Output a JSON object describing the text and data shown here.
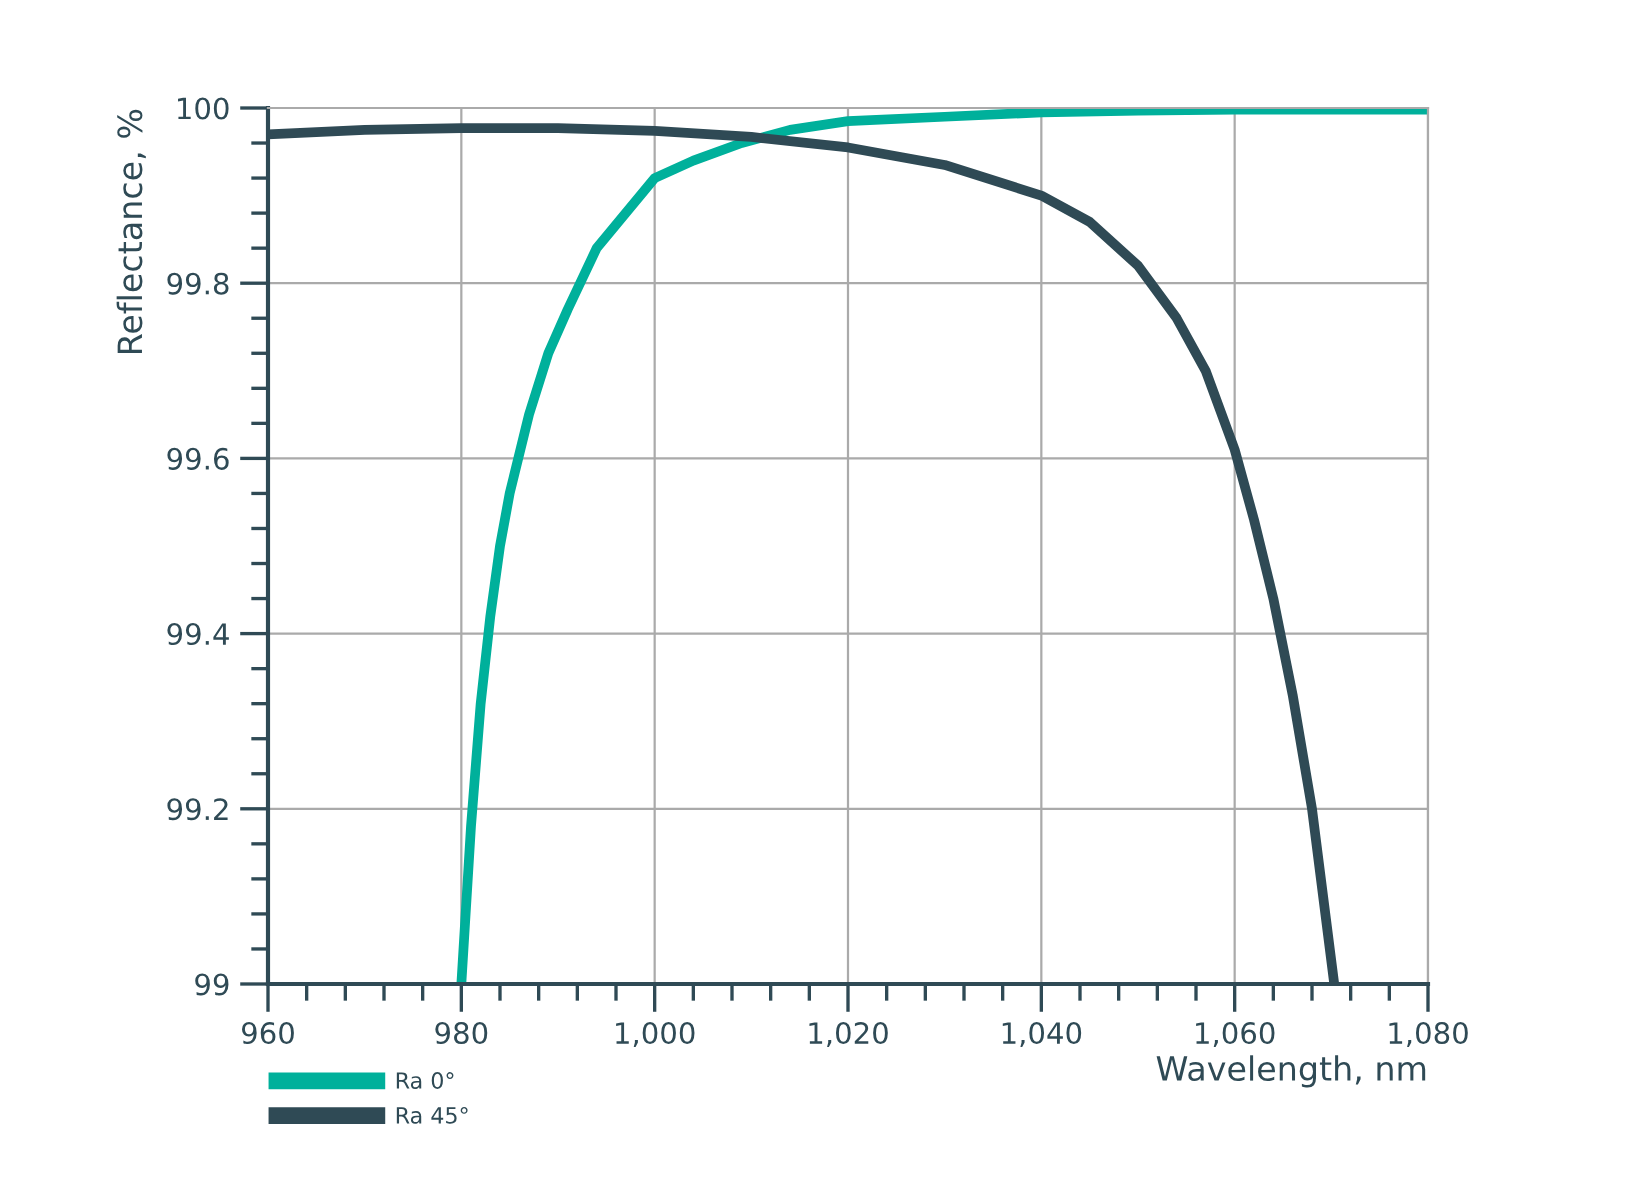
{
  "chart_data": {
    "type": "line",
    "xlabel": "Wavelength, nm",
    "ylabel": "Reflectance, %",
    "xlim": [
      960,
      1080
    ],
    "ylim": [
      99,
      100
    ],
    "xticks": [
      960,
      980,
      {
        "value": 1000,
        "label": "1,000"
      },
      {
        "value": 1020,
        "label": "1,020"
      },
      {
        "value": 1040,
        "label": "1,040"
      },
      {
        "value": 1060,
        "label": "1,060"
      },
      {
        "value": 1080,
        "label": "1,080"
      }
    ],
    "yticks": [
      99,
      99.2,
      99.4,
      99.6,
      99.8,
      100
    ],
    "grid": true,
    "legend": "bottom left",
    "marker": "none",
    "line_style": "solid",
    "series": [
      {
        "name": "Ra 0°",
        "color": "#00b09b",
        "x": [
          980,
          981,
          982,
          983,
          984,
          985,
          987,
          989,
          991,
          994,
          997,
          1000,
          1004,
          1009,
          1014,
          1020,
          1030,
          1040,
          1050,
          1060,
          1070,
          1080
        ],
        "values": [
          99.0,
          99.18,
          99.32,
          99.42,
          99.5,
          99.56,
          99.65,
          99.72,
          99.77,
          99.84,
          99.88,
          99.92,
          99.94,
          99.96,
          99.975,
          99.985,
          99.99,
          99.995,
          99.997,
          99.998,
          99.998,
          99.998
        ]
      },
      {
        "name": "Ra 45°",
        "color": "#2f4a55",
        "x": [
          960,
          970,
          980,
          990,
          1000,
          1010,
          1020,
          1030,
          1040,
          1045,
          1050,
          1054,
          1057,
          1060,
          1062,
          1064,
          1066,
          1068,
          1070.3
        ],
        "values": [
          99.97,
          99.975,
          99.977,
          99.977,
          99.974,
          99.967,
          99.955,
          99.935,
          99.9,
          99.87,
          99.82,
          99.76,
          99.7,
          99.61,
          99.53,
          99.44,
          99.33,
          99.2,
          99.0
        ]
      }
    ]
  }
}
